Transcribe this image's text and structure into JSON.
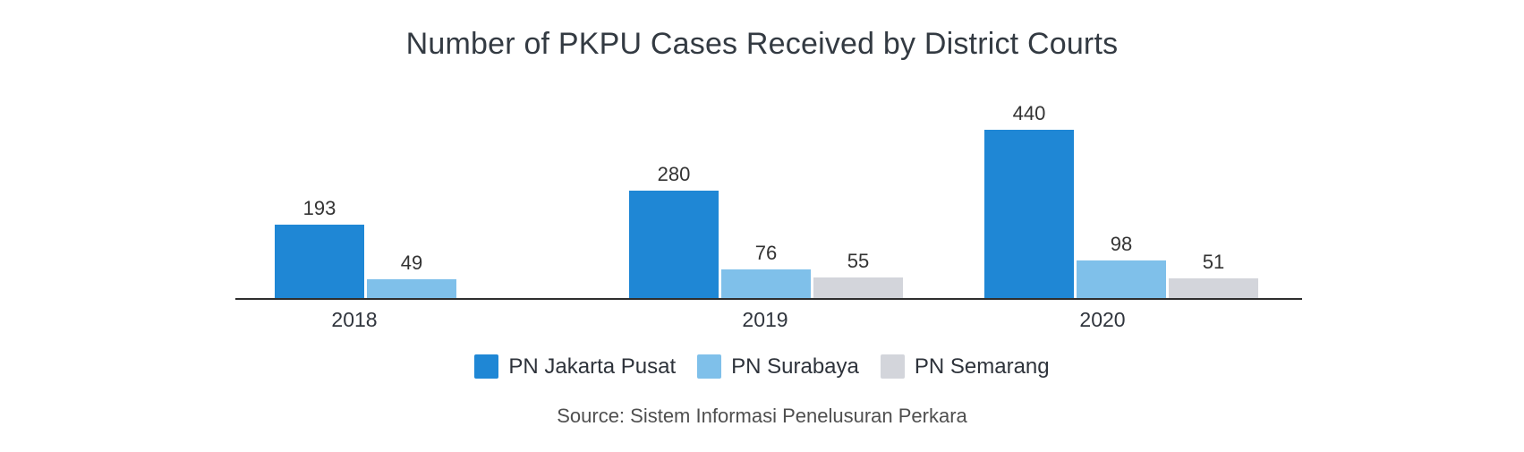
{
  "chart_data": {
    "type": "bar",
    "title": "Number of PKPU Cases Received by District Courts",
    "categories": [
      "2018",
      "2019",
      "2020"
    ],
    "series": [
      {
        "name": "PN Jakarta Pusat",
        "color": "#1f87d5",
        "values": [
          193,
          280,
          440
        ]
      },
      {
        "name": "PN Surabaya",
        "color": "#7fc0ea",
        "values": [
          49,
          76,
          98
        ]
      },
      {
        "name": "PN Semarang",
        "color": "#d3d5db",
        "values": [
          null,
          55,
          51
        ]
      }
    ],
    "value_labels": true,
    "legend_position": "bottom",
    "grid": false,
    "xlabel": "",
    "ylabel": "",
    "ylim": [
      0,
      440
    ]
  },
  "source": "Source: Sistem Informasi Penelusuran Perkara",
  "colors": {
    "title_text": "#333a42",
    "value_label_text": "#333333",
    "axis_line": "#2e2e2e",
    "source_text": "#4f4f4f"
  }
}
